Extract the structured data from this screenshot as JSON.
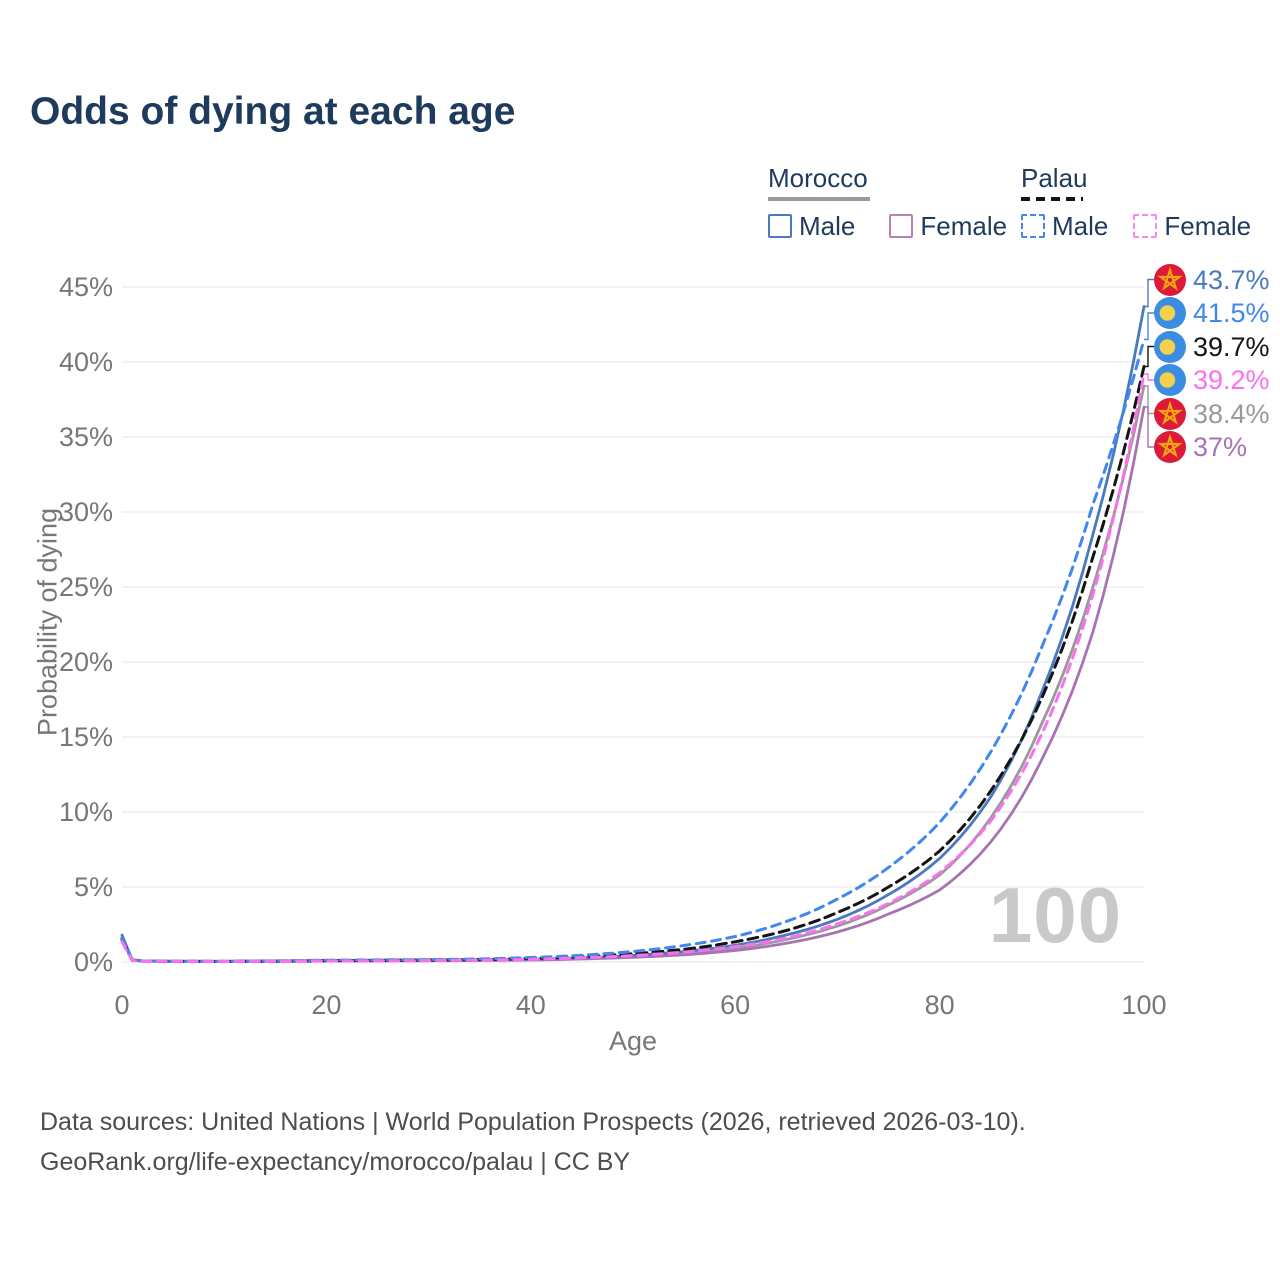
{
  "title": "Odds of dying at each age",
  "watermark": "100",
  "legend": {
    "morocco": {
      "header": "Morocco",
      "items": [
        {
          "label": "Male"
        },
        {
          "label": "Female"
        }
      ]
    },
    "palau": {
      "header": "Palau",
      "items": [
        {
          "label": "Male"
        },
        {
          "label": "Female"
        }
      ]
    }
  },
  "colors": {
    "title_navy": "#1e3a5c",
    "morocco_male": "#4a79be",
    "morocco_female": "#a873b3",
    "morocco_total": "#999999",
    "palau_male": "#4187f0",
    "palau_female": "#fb70ee",
    "palau_total": "#141414",
    "grid": "#e9e9e9",
    "tick_text": "#777777",
    "watermark_gray": "#c9c9c9",
    "flag_morocco_red": "#dd1b38",
    "flag_morocco_star": "#efa80f",
    "flag_palau_blue": "#3b8de2",
    "flag_palau_disc": "#f5d14b"
  },
  "chart_data": {
    "type": "line",
    "title": "Odds of dying at each age",
    "xlabel": "Age",
    "ylabel": "Probability of dying",
    "xlim": [
      0,
      100
    ],
    "ylim": [
      0,
      45
    ],
    "grid": "horizontal",
    "xticks": [
      0,
      20,
      40,
      60,
      80,
      100
    ],
    "yticks": [
      0,
      5,
      10,
      15,
      20,
      25,
      30,
      35,
      40,
      45
    ],
    "ages": [
      0,
      1,
      2,
      5,
      10,
      15,
      20,
      25,
      30,
      35,
      40,
      45,
      50,
      55,
      60,
      65,
      70,
      75,
      80,
      85,
      90,
      95,
      100
    ],
    "series": [
      {
        "id": "morocco_total",
        "name": "Morocco both sexes",
        "country": "Morocco",
        "sex": "Both",
        "color": "#999999",
        "dashed": false,
        "flag": "morocco",
        "values": [
          1.65,
          0.13,
          0.07,
          0.04,
          0.04,
          0.05,
          0.08,
          0.09,
          0.1,
          0.12,
          0.16,
          0.24,
          0.37,
          0.57,
          0.92,
          1.5,
          2.4,
          3.8,
          5.8,
          9.6,
          15.9,
          25.0,
          38.4
        ]
      },
      {
        "id": "morocco_female",
        "name": "Morocco Female",
        "country": "Morocco",
        "sex": "Female",
        "color": "#a873b3",
        "dashed": false,
        "flag": "morocco",
        "values": [
          1.5,
          0.12,
          0.06,
          0.04,
          0.03,
          0.04,
          0.06,
          0.07,
          0.08,
          0.1,
          0.13,
          0.2,
          0.31,
          0.48,
          0.77,
          1.25,
          2.0,
          3.2,
          4.8,
          8.0,
          13.5,
          22.0,
          37.0
        ]
      },
      {
        "id": "morocco_male",
        "name": "Morocco Male",
        "country": "Morocco",
        "sex": "Male",
        "color": "#4a79be",
        "dashed": false,
        "flag": "morocco",
        "values": [
          1.8,
          0.15,
          0.08,
          0.05,
          0.04,
          0.06,
          0.09,
          0.11,
          0.12,
          0.14,
          0.19,
          0.28,
          0.44,
          0.7,
          1.12,
          1.8,
          2.85,
          4.5,
          6.9,
          11.0,
          18.0,
          28.5,
          43.7
        ]
      },
      {
        "id": "palau_total",
        "name": "Palau both sexes",
        "country": "Palau",
        "sex": "Both",
        "color": "#141414",
        "dashed": true,
        "flag": "palau",
        "values": [
          1.5,
          0.12,
          0.06,
          0.04,
          0.04,
          0.06,
          0.09,
          0.11,
          0.13,
          0.16,
          0.24,
          0.36,
          0.55,
          0.85,
          1.35,
          2.1,
          3.3,
          5.0,
          7.4,
          11.4,
          17.6,
          27.0,
          39.7
        ]
      },
      {
        "id": "palau_male",
        "name": "Palau Male",
        "country": "Palau",
        "sex": "Male",
        "color": "#4187f0",
        "dashed": true,
        "flag": "palau",
        "values": [
          1.6,
          0.14,
          0.07,
          0.05,
          0.05,
          0.08,
          0.12,
          0.14,
          0.16,
          0.2,
          0.3,
          0.45,
          0.7,
          1.1,
          1.7,
          2.7,
          4.2,
          6.3,
          9.3,
          14.0,
          21.0,
          30.5,
          41.5
        ]
      },
      {
        "id": "palau_female",
        "name": "Palau Female",
        "country": "Palau",
        "sex": "Female",
        "color": "#fb70ee",
        "dashed": true,
        "flag": "palau",
        "values": [
          1.35,
          0.11,
          0.06,
          0.04,
          0.03,
          0.05,
          0.07,
          0.08,
          0.1,
          0.12,
          0.18,
          0.28,
          0.43,
          0.66,
          1.02,
          1.6,
          2.55,
          3.9,
          5.95,
          9.4,
          15.2,
          24.5,
          39.2
        ]
      }
    ],
    "end_labels": [
      {
        "series": "morocco_male",
        "label": "43.7%"
      },
      {
        "series": "palau_male",
        "label": "41.5%"
      },
      {
        "series": "palau_total",
        "label": "39.7%"
      },
      {
        "series": "palau_female",
        "label": "39.2%"
      },
      {
        "series": "morocco_total",
        "label": "38.4%"
      },
      {
        "series": "morocco_female",
        "label": "37%"
      }
    ]
  },
  "footer": {
    "line1": "Data sources: United Nations | World Population Prospects (2026, retrieved 2026-03-10).",
    "line2": "GeoRank.org/life-expectancy/morocco/palau | CC BY"
  }
}
